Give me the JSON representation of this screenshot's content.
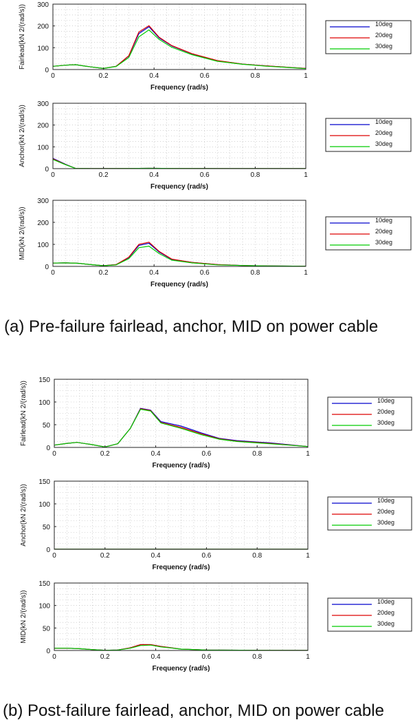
{
  "captions": {
    "a": "(a) Pre-failure fairlead, anchor, MID on power cable",
    "b": "(b) Post-failure fairlead, anchor, MID on power cable"
  },
  "series_colors": {
    "10deg": "#0000cc",
    "20deg": "#dd0000",
    "30deg": "#00cc00"
  },
  "chart_data": [
    {
      "type": "line",
      "group": "a",
      "xlabel": "Frequency (rad/s)",
      "ylabel": "Fairlead(kN   2/(rad/s))",
      "xlim": [
        0,
        1
      ],
      "ylim": [
        0,
        300
      ],
      "xticks": [
        "0",
        "0.2",
        "0.4",
        "0.6",
        "0.8",
        "1"
      ],
      "yticks": [
        "0",
        "100",
        "200",
        "300"
      ],
      "grid": true,
      "legend": "right",
      "x": [
        0,
        0.05,
        0.09,
        0.15,
        0.2,
        0.25,
        0.3,
        0.34,
        0.38,
        0.42,
        0.47,
        0.55,
        0.65,
        0.75,
        0.85,
        0.95,
        1.0
      ],
      "series": [
        {
          "name": "10deg",
          "color": "#0000cc",
          "values": [
            15,
            20,
            22,
            12,
            5,
            15,
            62,
            165,
            196,
            145,
            108,
            72,
            40,
            25,
            16,
            9,
            5
          ]
        },
        {
          "name": "20deg",
          "color": "#dd0000",
          "values": [
            15,
            20,
            22,
            12,
            5,
            15,
            63,
            172,
            201,
            148,
            110,
            73,
            41,
            25,
            16,
            9,
            5
          ]
        },
        {
          "name": "30deg",
          "color": "#00cc00",
          "values": [
            15,
            20,
            22,
            12,
            5,
            14,
            55,
            150,
            182,
            138,
            102,
            68,
            38,
            24,
            15,
            8,
            4
          ]
        }
      ]
    },
    {
      "type": "line",
      "group": "a",
      "xlabel": "Frequency (rad/s)",
      "ylabel": "Anchor(kN   2/(rad/s))",
      "xlim": [
        0,
        1
      ],
      "ylim": [
        0,
        300
      ],
      "xticks": [
        "0",
        "0.2",
        "0.4",
        "0.6",
        "0.8",
        "1"
      ],
      "yticks": [
        "0",
        "100",
        "200",
        "300"
      ],
      "grid": true,
      "legend": "right",
      "x": [
        0,
        0.05,
        0.09,
        0.15,
        0.2,
        0.3,
        0.38,
        0.5,
        0.7,
        1.0
      ],
      "series": [
        {
          "name": "10deg",
          "color": "#0000cc",
          "values": [
            47,
            20,
            1,
            0.5,
            0.5,
            0.8,
            1.5,
            1,
            0.5,
            0.3
          ]
        },
        {
          "name": "20deg",
          "color": "#dd0000",
          "values": [
            45,
            19,
            1,
            0.5,
            0.5,
            0.8,
            1.5,
            1,
            0.5,
            0.3
          ]
        },
        {
          "name": "30deg",
          "color": "#00cc00",
          "values": [
            42,
            18,
            1,
            0.5,
            0.5,
            0.8,
            1.5,
            1,
            0.5,
            0.3
          ]
        }
      ]
    },
    {
      "type": "line",
      "group": "a",
      "xlabel": "Frequency (rad/s)",
      "ylabel": "MID(kN   2/(rad/s))",
      "xlim": [
        0,
        1
      ],
      "ylim": [
        0,
        300
      ],
      "xticks": [
        "0",
        "0.2",
        "0.4",
        "0.6",
        "0.8",
        "1"
      ],
      "yticks": [
        "0",
        "100",
        "200",
        "300"
      ],
      "grid": true,
      "legend": "right",
      "x": [
        0,
        0.05,
        0.1,
        0.15,
        0.2,
        0.25,
        0.3,
        0.34,
        0.38,
        0.42,
        0.47,
        0.55,
        0.65,
        0.75,
        0.85,
        1.0
      ],
      "series": [
        {
          "name": "10deg",
          "color": "#0000cc",
          "values": [
            15,
            16,
            14,
            8,
            3,
            8,
            40,
            95,
            105,
            65,
            32,
            18,
            8,
            4,
            2,
            1
          ]
        },
        {
          "name": "20deg",
          "color": "#dd0000",
          "values": [
            15,
            16,
            14,
            8,
            3,
            8,
            42,
            100,
            110,
            68,
            33,
            18,
            8,
            4,
            2,
            1
          ]
        },
        {
          "name": "30deg",
          "color": "#00cc00",
          "values": [
            15,
            16,
            14,
            8,
            3,
            7,
            35,
            85,
            92,
            58,
            28,
            16,
            7,
            4,
            2,
            1
          ]
        }
      ]
    },
    {
      "type": "line",
      "group": "b",
      "xlabel": "Frequency (rad/s)",
      "ylabel": "Fairlead(kN   2/(rad/s))",
      "xlim": [
        0,
        1
      ],
      "ylim": [
        0,
        150
      ],
      "xticks": [
        "0",
        "0.2",
        "0.4",
        "0.6",
        "0.8",
        "1"
      ],
      "yticks": [
        "0",
        "50",
        "100",
        "150"
      ],
      "grid": true,
      "legend": "right",
      "x": [
        0,
        0.05,
        0.09,
        0.15,
        0.2,
        0.25,
        0.3,
        0.34,
        0.38,
        0.42,
        0.5,
        0.58,
        0.65,
        0.72,
        0.85,
        1.0
      ],
      "series": [
        {
          "name": "10deg",
          "color": "#0000cc",
          "values": [
            5,
            9,
            11,
            6,
            1,
            8,
            42,
            86,
            82,
            57,
            47,
            32,
            20,
            15,
            10,
            2
          ]
        },
        {
          "name": "20deg",
          "color": "#dd0000",
          "values": [
            5,
            9,
            11,
            6,
            1,
            8,
            42,
            85,
            81,
            55,
            44,
            30,
            19,
            14,
            9,
            2
          ]
        },
        {
          "name": "30deg",
          "color": "#00cc00",
          "values": [
            5,
            9,
            11,
            6,
            1,
            8,
            42,
            84,
            80,
            54,
            42,
            28,
            18,
            13,
            8,
            2
          ]
        }
      ]
    },
    {
      "type": "line",
      "group": "b",
      "xlabel": "Frequency (rad/s)",
      "ylabel": "Anchor(kN   2/(rad/s))",
      "xlim": [
        0,
        1
      ],
      "ylim": [
        0,
        150
      ],
      "xticks": [
        "0",
        "0.2",
        "0.4",
        "0.6",
        "0.8",
        "1"
      ],
      "yticks": [
        "0",
        "50",
        "100",
        "150"
      ],
      "grid": true,
      "legend": "right",
      "x": [
        0,
        0.2,
        0.4,
        0.6,
        0.8,
        1.0
      ],
      "series": [
        {
          "name": "10deg",
          "color": "#0000cc",
          "values": [
            0.2,
            0.2,
            0.2,
            0.2,
            0.2,
            0.2
          ]
        },
        {
          "name": "20deg",
          "color": "#dd0000",
          "values": [
            0.2,
            0.2,
            0.2,
            0.2,
            0.2,
            0.2
          ]
        },
        {
          "name": "30deg",
          "color": "#00cc00",
          "values": [
            0.2,
            0.2,
            0.2,
            0.2,
            0.2,
            0.2
          ]
        }
      ]
    },
    {
      "type": "line",
      "group": "b",
      "xlabel": "Frequency (rad/s)",
      "ylabel": "MID(kN   2/(rad/s))",
      "xlim": [
        0,
        1
      ],
      "ylim": [
        0,
        150
      ],
      "xticks": [
        "0",
        "0.2",
        "0.4",
        "0.6",
        "0.8",
        "1"
      ],
      "yticks": [
        "0",
        "50",
        "100",
        "150"
      ],
      "grid": true,
      "legend": "right",
      "x": [
        0,
        0.05,
        0.1,
        0.15,
        0.2,
        0.25,
        0.3,
        0.34,
        0.38,
        0.42,
        0.5,
        0.6,
        0.8,
        1.0
      ],
      "series": [
        {
          "name": "10deg",
          "color": "#0000cc",
          "values": [
            5,
            5,
            4,
            2,
            0.5,
            1,
            6,
            13,
            13,
            9,
            3,
            1,
            0.5,
            0.2
          ]
        },
        {
          "name": "20deg",
          "color": "#dd0000",
          "values": [
            5,
            5,
            4,
            2,
            0.5,
            1,
            6,
            13,
            13,
            9,
            3,
            1,
            0.5,
            0.2
          ]
        },
        {
          "name": "30deg",
          "color": "#00cc00",
          "values": [
            5,
            5,
            4,
            2,
            0.5,
            1,
            5,
            11,
            12,
            8,
            3,
            1,
            0.5,
            0.2
          ]
        }
      ]
    }
  ]
}
